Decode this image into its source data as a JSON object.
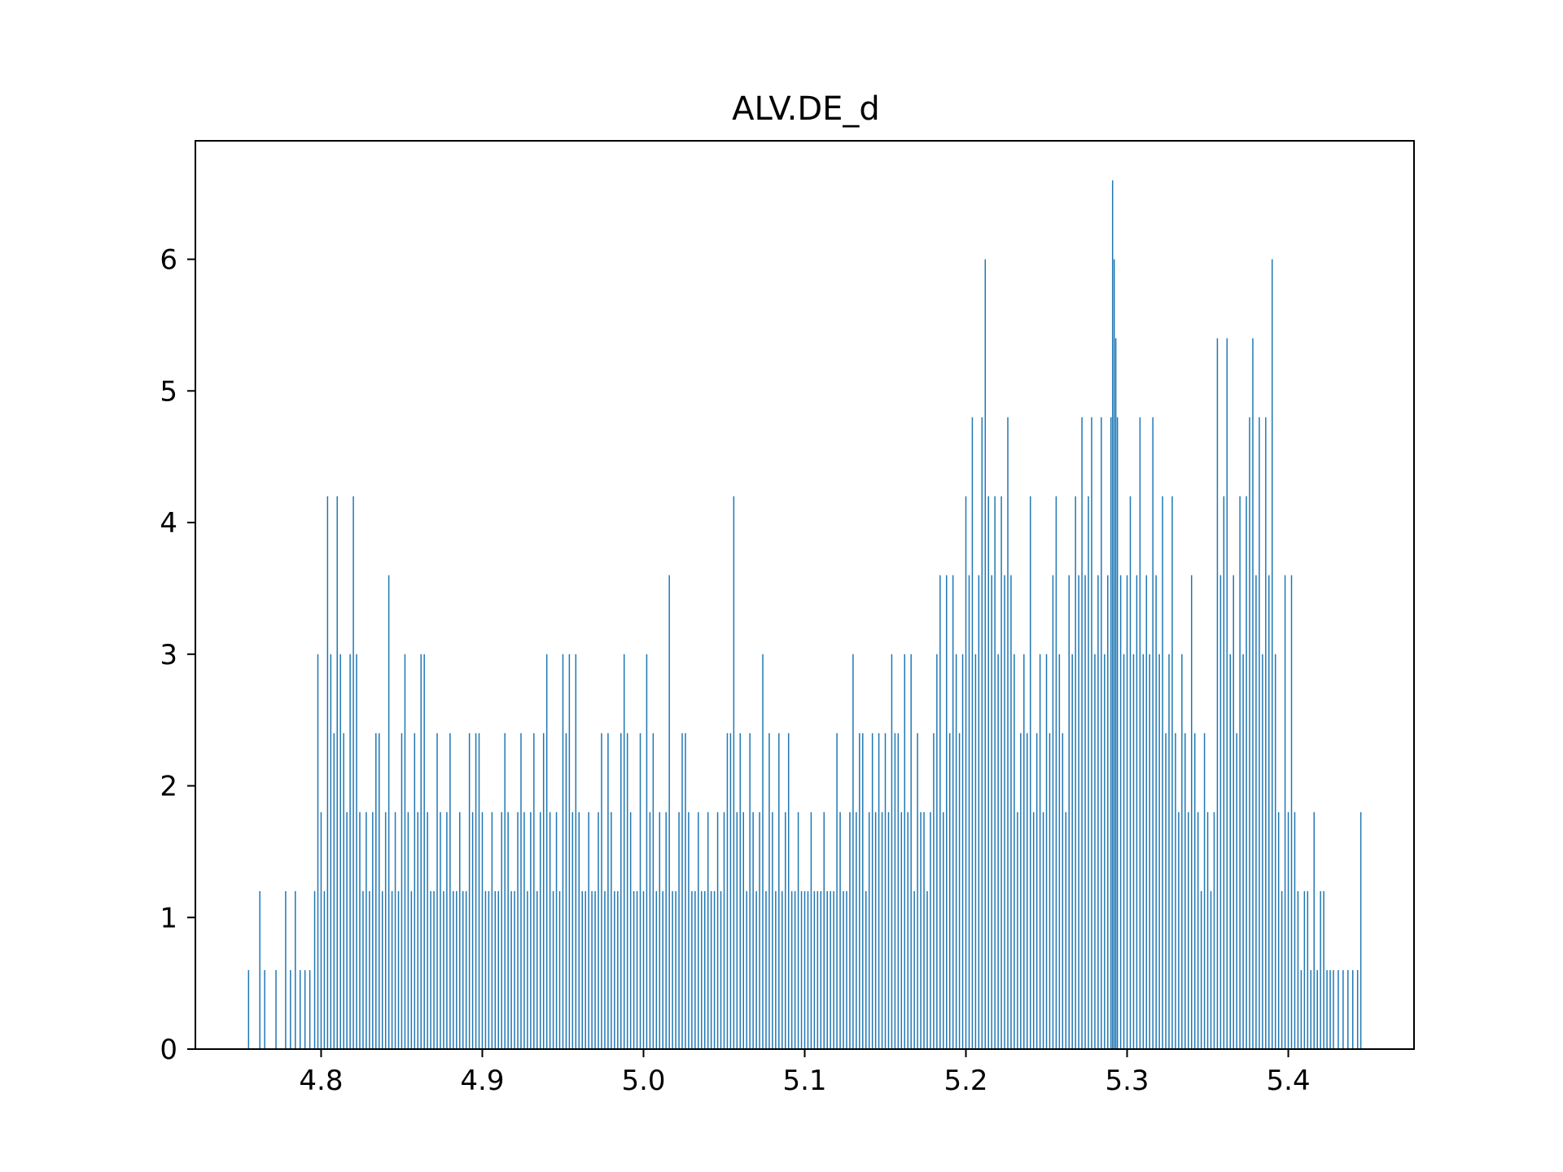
{
  "chart_data": {
    "type": "bar",
    "title": "ALV.DE_d",
    "xlabel": "",
    "ylabel": "",
    "xlim": [
      4.722,
      5.478
    ],
    "ylim": [
      0,
      6.9
    ],
    "x_ticks": [
      "4.8",
      "4.9",
      "5.0",
      "5.1",
      "5.2",
      "5.3",
      "5.4"
    ],
    "y_ticks": [
      "0",
      "1",
      "2",
      "3",
      "4",
      "5",
      "6"
    ],
    "bar_color": "#1f77b4",
    "grid": false,
    "legend": "none",
    "bin_width": 0.00075,
    "bins": [
      [
        4.755,
        0.6
      ],
      [
        4.762,
        1.2
      ],
      [
        4.765,
        0.6
      ],
      [
        4.772,
        0.6
      ],
      [
        4.778,
        1.2
      ],
      [
        4.781,
        0.6
      ],
      [
        4.784,
        1.2
      ],
      [
        4.787,
        0.6
      ],
      [
        4.79,
        0.6
      ],
      [
        4.793,
        0.6
      ],
      [
        4.796,
        1.2
      ],
      [
        4.798,
        3.0
      ],
      [
        4.8,
        1.8
      ],
      [
        4.802,
        1.2
      ],
      [
        4.804,
        4.2
      ],
      [
        4.806,
        3.0
      ],
      [
        4.808,
        2.4
      ],
      [
        4.81,
        4.2
      ],
      [
        4.812,
        3.0
      ],
      [
        4.814,
        2.4
      ],
      [
        4.816,
        1.8
      ],
      [
        4.818,
        3.0
      ],
      [
        4.82,
        4.2
      ],
      [
        4.822,
        3.0
      ],
      [
        4.824,
        1.8
      ],
      [
        4.826,
        1.2
      ],
      [
        4.828,
        1.8
      ],
      [
        4.83,
        1.2
      ],
      [
        4.832,
        1.8
      ],
      [
        4.834,
        2.4
      ],
      [
        4.836,
        2.4
      ],
      [
        4.838,
        1.2
      ],
      [
        4.84,
        1.8
      ],
      [
        4.842,
        3.6
      ],
      [
        4.844,
        1.2
      ],
      [
        4.846,
        1.8
      ],
      [
        4.848,
        1.2
      ],
      [
        4.85,
        2.4
      ],
      [
        4.852,
        3.0
      ],
      [
        4.854,
        1.8
      ],
      [
        4.856,
        1.2
      ],
      [
        4.858,
        2.4
      ],
      [
        4.86,
        1.8
      ],
      [
        4.862,
        3.0
      ],
      [
        4.864,
        3.0
      ],
      [
        4.866,
        1.8
      ],
      [
        4.868,
        1.2
      ],
      [
        4.87,
        1.2
      ],
      [
        4.872,
        2.4
      ],
      [
        4.874,
        1.8
      ],
      [
        4.876,
        1.2
      ],
      [
        4.878,
        1.8
      ],
      [
        4.88,
        2.4
      ],
      [
        4.882,
        1.2
      ],
      [
        4.884,
        1.2
      ],
      [
        4.886,
        1.8
      ],
      [
        4.888,
        1.2
      ],
      [
        4.89,
        1.2
      ],
      [
        4.892,
        2.4
      ],
      [
        4.894,
        1.8
      ],
      [
        4.896,
        2.4
      ],
      [
        4.898,
        2.4
      ],
      [
        4.9,
        1.8
      ],
      [
        4.902,
        1.2
      ],
      [
        4.904,
        1.2
      ],
      [
        4.906,
        1.8
      ],
      [
        4.908,
        1.2
      ],
      [
        4.91,
        1.2
      ],
      [
        4.912,
        1.8
      ],
      [
        4.914,
        2.4
      ],
      [
        4.916,
        1.8
      ],
      [
        4.918,
        1.2
      ],
      [
        4.92,
        1.2
      ],
      [
        4.922,
        1.8
      ],
      [
        4.924,
        2.4
      ],
      [
        4.926,
        1.8
      ],
      [
        4.928,
        1.2
      ],
      [
        4.93,
        1.8
      ],
      [
        4.932,
        2.4
      ],
      [
        4.934,
        1.2
      ],
      [
        4.936,
        1.8
      ],
      [
        4.938,
        2.4
      ],
      [
        4.94,
        3.0
      ],
      [
        4.942,
        1.8
      ],
      [
        4.944,
        1.2
      ],
      [
        4.946,
        1.8
      ],
      [
        4.948,
        1.2
      ],
      [
        4.95,
        3.0
      ],
      [
        4.952,
        2.4
      ],
      [
        4.954,
        3.0
      ],
      [
        4.956,
        1.8
      ],
      [
        4.958,
        3.0
      ],
      [
        4.96,
        1.8
      ],
      [
        4.962,
        1.2
      ],
      [
        4.964,
        1.2
      ],
      [
        4.966,
        1.8
      ],
      [
        4.968,
        1.2
      ],
      [
        4.97,
        1.2
      ],
      [
        4.972,
        1.8
      ],
      [
        4.974,
        2.4
      ],
      [
        4.976,
        1.2
      ],
      [
        4.978,
        2.4
      ],
      [
        4.98,
        1.8
      ],
      [
        4.982,
        1.2
      ],
      [
        4.984,
        1.2
      ],
      [
        4.986,
        2.4
      ],
      [
        4.988,
        3.0
      ],
      [
        4.99,
        2.4
      ],
      [
        4.992,
        1.8
      ],
      [
        4.994,
        1.2
      ],
      [
        4.996,
        1.2
      ],
      [
        4.998,
        2.4
      ],
      [
        5.0,
        1.2
      ],
      [
        5.002,
        3.0
      ],
      [
        5.004,
        1.8
      ],
      [
        5.006,
        2.4
      ],
      [
        5.008,
        1.2
      ],
      [
        5.01,
        1.8
      ],
      [
        5.012,
        1.2
      ],
      [
        5.014,
        1.8
      ],
      [
        5.016,
        3.6
      ],
      [
        5.018,
        1.2
      ],
      [
        5.02,
        1.2
      ],
      [
        5.022,
        1.8
      ],
      [
        5.024,
        2.4
      ],
      [
        5.026,
        2.4
      ],
      [
        5.028,
        1.8
      ],
      [
        5.03,
        1.2
      ],
      [
        5.032,
        1.2
      ],
      [
        5.034,
        1.8
      ],
      [
        5.036,
        1.2
      ],
      [
        5.038,
        1.2
      ],
      [
        5.04,
        1.8
      ],
      [
        5.042,
        1.2
      ],
      [
        5.044,
        1.2
      ],
      [
        5.046,
        1.8
      ],
      [
        5.048,
        1.2
      ],
      [
        5.05,
        1.8
      ],
      [
        5.052,
        2.4
      ],
      [
        5.054,
        2.4
      ],
      [
        5.056,
        4.2
      ],
      [
        5.058,
        1.8
      ],
      [
        5.06,
        2.4
      ],
      [
        5.062,
        1.8
      ],
      [
        5.064,
        1.2
      ],
      [
        5.066,
        2.4
      ],
      [
        5.068,
        1.8
      ],
      [
        5.07,
        1.2
      ],
      [
        5.072,
        1.8
      ],
      [
        5.074,
        3.0
      ],
      [
        5.076,
        1.2
      ],
      [
        5.078,
        2.4
      ],
      [
        5.08,
        1.8
      ],
      [
        5.082,
        1.2
      ],
      [
        5.084,
        2.4
      ],
      [
        5.086,
        1.2
      ],
      [
        5.088,
        1.8
      ],
      [
        5.09,
        2.4
      ],
      [
        5.092,
        1.2
      ],
      [
        5.094,
        1.2
      ],
      [
        5.096,
        1.8
      ],
      [
        5.098,
        1.2
      ],
      [
        5.1,
        1.2
      ],
      [
        5.102,
        1.2
      ],
      [
        5.104,
        1.8
      ],
      [
        5.106,
        1.2
      ],
      [
        5.108,
        1.2
      ],
      [
        5.11,
        1.2
      ],
      [
        5.112,
        1.8
      ],
      [
        5.114,
        1.2
      ],
      [
        5.116,
        1.2
      ],
      [
        5.118,
        1.2
      ],
      [
        5.12,
        2.4
      ],
      [
        5.122,
        1.8
      ],
      [
        5.124,
        1.2
      ],
      [
        5.126,
        1.2
      ],
      [
        5.128,
        1.8
      ],
      [
        5.13,
        3.0
      ],
      [
        5.132,
        1.8
      ],
      [
        5.134,
        2.4
      ],
      [
        5.136,
        2.4
      ],
      [
        5.138,
        1.2
      ],
      [
        5.14,
        1.8
      ],
      [
        5.142,
        2.4
      ],
      [
        5.144,
        1.8
      ],
      [
        5.146,
        2.4
      ],
      [
        5.148,
        1.8
      ],
      [
        5.15,
        2.4
      ],
      [
        5.152,
        1.8
      ],
      [
        5.154,
        3.0
      ],
      [
        5.156,
        2.4
      ],
      [
        5.158,
        2.4
      ],
      [
        5.16,
        1.8
      ],
      [
        5.162,
        3.0
      ],
      [
        5.164,
        1.8
      ],
      [
        5.166,
        3.0
      ],
      [
        5.168,
        1.2
      ],
      [
        5.17,
        2.4
      ],
      [
        5.172,
        1.8
      ],
      [
        5.174,
        1.8
      ],
      [
        5.176,
        1.2
      ],
      [
        5.178,
        1.8
      ],
      [
        5.18,
        2.4
      ],
      [
        5.182,
        3.0
      ],
      [
        5.184,
        3.6
      ],
      [
        5.186,
        1.8
      ],
      [
        5.188,
        3.6
      ],
      [
        5.19,
        2.4
      ],
      [
        5.192,
        3.6
      ],
      [
        5.194,
        3.0
      ],
      [
        5.196,
        2.4
      ],
      [
        5.198,
        3.0
      ],
      [
        5.2,
        4.2
      ],
      [
        5.202,
        3.6
      ],
      [
        5.204,
        4.8
      ],
      [
        5.206,
        3.0
      ],
      [
        5.208,
        3.6
      ],
      [
        5.21,
        4.8
      ],
      [
        5.212,
        6.0
      ],
      [
        5.214,
        4.2
      ],
      [
        5.216,
        3.6
      ],
      [
        5.218,
        4.2
      ],
      [
        5.22,
        3.0
      ],
      [
        5.222,
        4.2
      ],
      [
        5.224,
        3.6
      ],
      [
        5.226,
        4.8
      ],
      [
        5.228,
        3.6
      ],
      [
        5.23,
        3.0
      ],
      [
        5.232,
        1.8
      ],
      [
        5.234,
        2.4
      ],
      [
        5.236,
        3.0
      ],
      [
        5.238,
        2.4
      ],
      [
        5.24,
        4.2
      ],
      [
        5.242,
        1.8
      ],
      [
        5.244,
        2.4
      ],
      [
        5.246,
        3.0
      ],
      [
        5.248,
        1.8
      ],
      [
        5.25,
        3.0
      ],
      [
        5.252,
        2.4
      ],
      [
        5.254,
        3.6
      ],
      [
        5.256,
        4.2
      ],
      [
        5.258,
        3.0
      ],
      [
        5.26,
        2.4
      ],
      [
        5.262,
        1.8
      ],
      [
        5.264,
        3.6
      ],
      [
        5.266,
        3.0
      ],
      [
        5.268,
        4.2
      ],
      [
        5.27,
        3.6
      ],
      [
        5.272,
        4.8
      ],
      [
        5.274,
        3.6
      ],
      [
        5.276,
        4.2
      ],
      [
        5.278,
        4.8
      ],
      [
        5.28,
        3.0
      ],
      [
        5.282,
        3.6
      ],
      [
        5.284,
        4.8
      ],
      [
        5.286,
        3.0
      ],
      [
        5.288,
        3.6
      ],
      [
        5.29,
        4.8
      ],
      [
        5.291,
        6.6
      ],
      [
        5.292,
        6.0
      ],
      [
        5.293,
        5.4
      ],
      [
        5.294,
        4.8
      ],
      [
        5.296,
        3.6
      ],
      [
        5.298,
        3.0
      ],
      [
        5.3,
        3.6
      ],
      [
        5.302,
        4.2
      ],
      [
        5.304,
        3.0
      ],
      [
        5.306,
        3.6
      ],
      [
        5.308,
        4.8
      ],
      [
        5.31,
        3.0
      ],
      [
        5.312,
        3.6
      ],
      [
        5.314,
        3.0
      ],
      [
        5.316,
        4.8
      ],
      [
        5.318,
        3.6
      ],
      [
        5.32,
        3.0
      ],
      [
        5.322,
        4.2
      ],
      [
        5.324,
        2.4
      ],
      [
        5.326,
        3.0
      ],
      [
        5.328,
        4.2
      ],
      [
        5.33,
        2.4
      ],
      [
        5.332,
        1.8
      ],
      [
        5.334,
        3.0
      ],
      [
        5.336,
        2.4
      ],
      [
        5.338,
        1.8
      ],
      [
        5.34,
        3.6
      ],
      [
        5.342,
        2.4
      ],
      [
        5.344,
        1.8
      ],
      [
        5.346,
        1.2
      ],
      [
        5.348,
        2.4
      ],
      [
        5.35,
        1.8
      ],
      [
        5.352,
        1.2
      ],
      [
        5.354,
        1.8
      ],
      [
        5.356,
        5.4
      ],
      [
        5.358,
        3.6
      ],
      [
        5.36,
        4.2
      ],
      [
        5.362,
        5.4
      ],
      [
        5.364,
        3.0
      ],
      [
        5.366,
        3.6
      ],
      [
        5.368,
        2.4
      ],
      [
        5.37,
        4.2
      ],
      [
        5.372,
        3.0
      ],
      [
        5.374,
        4.2
      ],
      [
        5.376,
        4.8
      ],
      [
        5.378,
        5.4
      ],
      [
        5.38,
        3.6
      ],
      [
        5.382,
        4.8
      ],
      [
        5.384,
        3.0
      ],
      [
        5.386,
        4.8
      ],
      [
        5.388,
        3.6
      ],
      [
        5.39,
        6.0
      ],
      [
        5.392,
        3.0
      ],
      [
        5.394,
        1.8
      ],
      [
        5.396,
        1.2
      ],
      [
        5.398,
        3.6
      ],
      [
        5.4,
        1.8
      ],
      [
        5.402,
        3.6
      ],
      [
        5.404,
        1.8
      ],
      [
        5.406,
        1.2
      ],
      [
        5.408,
        0.6
      ],
      [
        5.41,
        1.2
      ],
      [
        5.412,
        1.2
      ],
      [
        5.414,
        0.6
      ],
      [
        5.416,
        1.8
      ],
      [
        5.418,
        0.6
      ],
      [
        5.42,
        1.2
      ],
      [
        5.422,
        1.2
      ],
      [
        5.424,
        0.6
      ],
      [
        5.426,
        0.6
      ],
      [
        5.428,
        0.6
      ],
      [
        5.431,
        0.6
      ],
      [
        5.434,
        0.6
      ],
      [
        5.437,
        0.6
      ],
      [
        5.44,
        0.6
      ],
      [
        5.443,
        0.6
      ],
      [
        5.445,
        1.8
      ]
    ]
  }
}
